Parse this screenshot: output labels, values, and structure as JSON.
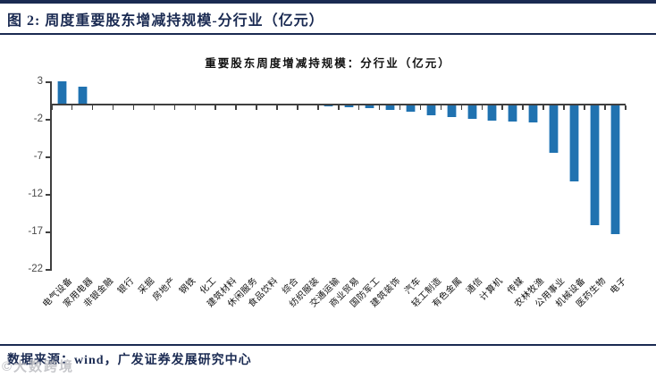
{
  "figure": {
    "title": "图 2: 周度重要股东增减持规模-分行业（亿元）",
    "source_note": "数据来源：wind，广发证券发展研究中心",
    "watermark": "©大数跨境"
  },
  "chart_data": {
    "type": "bar",
    "title": "重要股东周度增减持规模：分行业（亿元）",
    "categories": [
      "电气设备",
      "家用电器",
      "非银金融",
      "银行",
      "采掘",
      "房地产",
      "钢铁",
      "化工",
      "建筑材料",
      "休闲服务",
      "食品饮料",
      "综合",
      "纺织服装",
      "交通运输",
      "商业贸易",
      "国防军工",
      "建筑装饰",
      "汽车",
      "轻工制造",
      "有色金属",
      "通信",
      "计算机",
      "传媒",
      "农林牧渔",
      "公用事业",
      "机械设备",
      "医药生物",
      "电子"
    ],
    "values": [
      3.1,
      2.4,
      0.2,
      -0.02,
      -0.03,
      -0.05,
      -0.05,
      -0.08,
      -0.08,
      -0.1,
      -0.1,
      -0.1,
      -0.15,
      -0.2,
      -0.3,
      -0.4,
      -0.7,
      -0.9,
      -1.4,
      -1.7,
      -1.9,
      -2.1,
      -2.2,
      -2.4,
      -6.4,
      -10.2,
      -16.0,
      -17.2
    ],
    "xlabel": "",
    "ylabel": "",
    "ylim": [
      -22,
      3
    ],
    "yticks": [
      3,
      -2,
      -7,
      -12,
      -17,
      -22
    ],
    "grid": false,
    "legend_position": "none",
    "bar_color": "#2072b0",
    "bar_edge_color": "#a5c9e5",
    "axis_color": "#3f3f3f",
    "accent_navy": "#1a2a52"
  }
}
